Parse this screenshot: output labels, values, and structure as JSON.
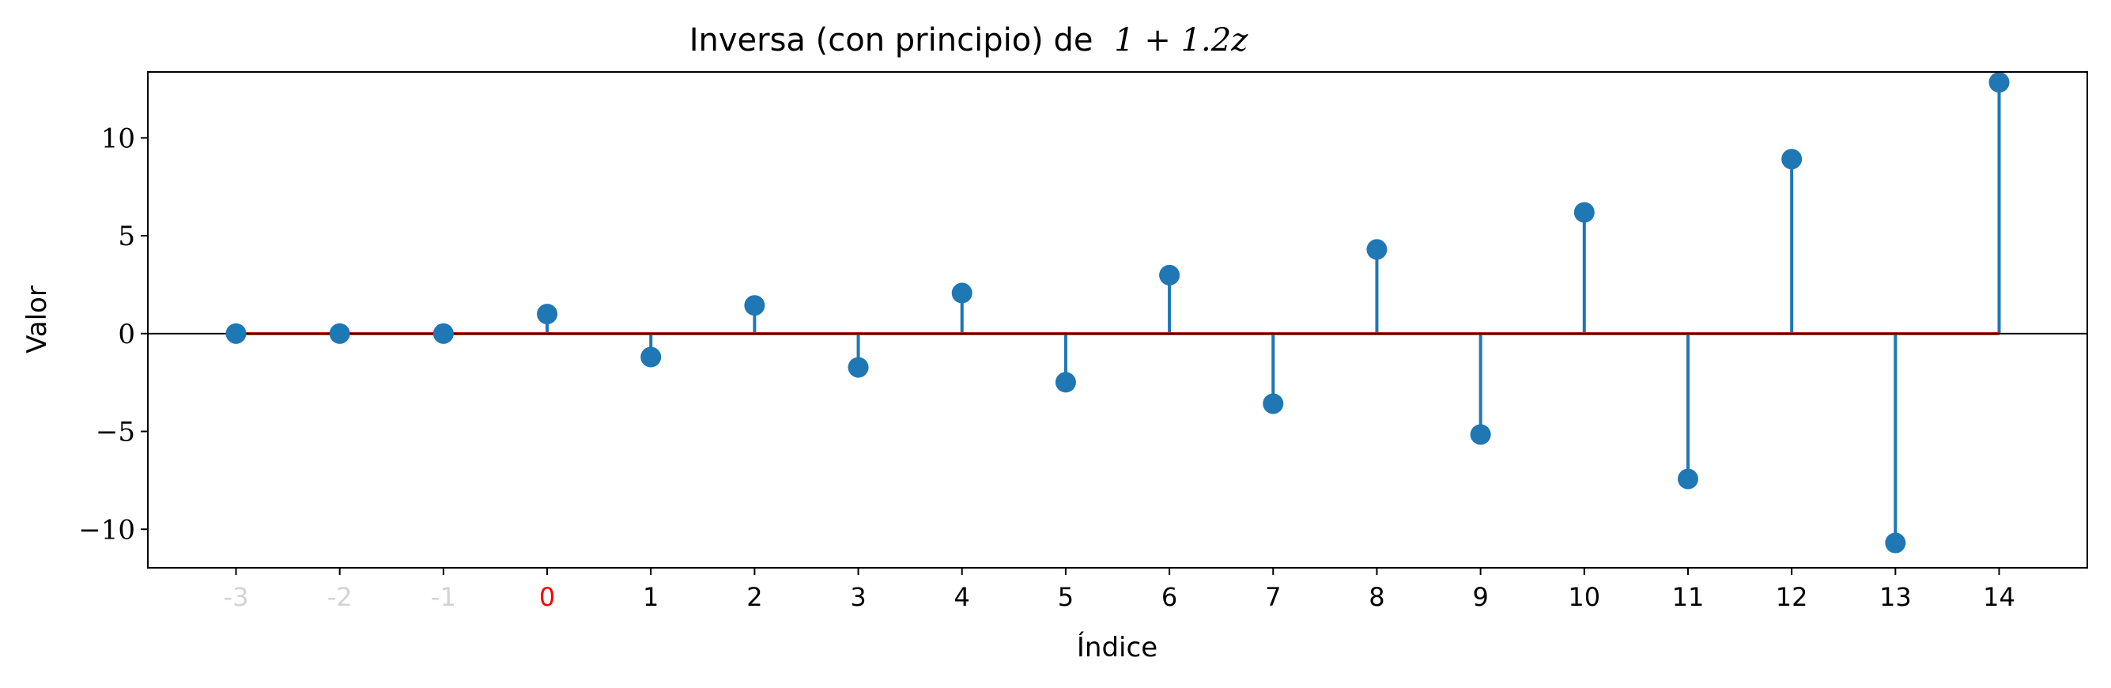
{
  "chart_data": {
    "type": "stem",
    "title": "Inversa (con principio) de",
    "title_math": "1 + 1.2z",
    "xlabel": "Índice",
    "ylabel": "Valor",
    "x": [
      -3,
      -2,
      -1,
      0,
      1,
      2,
      3,
      4,
      5,
      6,
      7,
      8,
      9,
      10,
      11,
      12,
      13,
      14
    ],
    "values": [
      0,
      0,
      0,
      1,
      -1.2,
      1.44,
      -1.728,
      2.0736,
      -2.48832,
      2.985984,
      -3.583181,
      4.299817,
      -5.15978,
      6.191736,
      -7.430084,
      8.9161,
      -10.69932,
      12.839185
    ],
    "xtick_labels": [
      "-3",
      "-2",
      "-1",
      "0",
      "1",
      "2",
      "3",
      "4",
      "5",
      "6",
      "7",
      "8",
      "9",
      "10",
      "11",
      "12",
      "13",
      "14"
    ],
    "xtick_colors": [
      "#d3d3d3",
      "#d3d3d3",
      "#d3d3d3",
      "#ff0000",
      "#000000",
      "#000000",
      "#000000",
      "#000000",
      "#000000",
      "#000000",
      "#000000",
      "#000000",
      "#000000",
      "#000000",
      "#000000",
      "#000000",
      "#000000",
      "#000000"
    ],
    "yticks": [
      -10,
      -5,
      0,
      5,
      10
    ],
    "ytick_labels": [
      "−10",
      "−5",
      "0",
      "5",
      "10"
    ],
    "xlim": [
      -3.85,
      14.85
    ],
    "ylim": [
      -11.97,
      13.37
    ],
    "stem_color": "#1f77b4",
    "baseline_color": "#d62728",
    "zero_line_color": "#000000",
    "grid": false,
    "legend": "none"
  }
}
